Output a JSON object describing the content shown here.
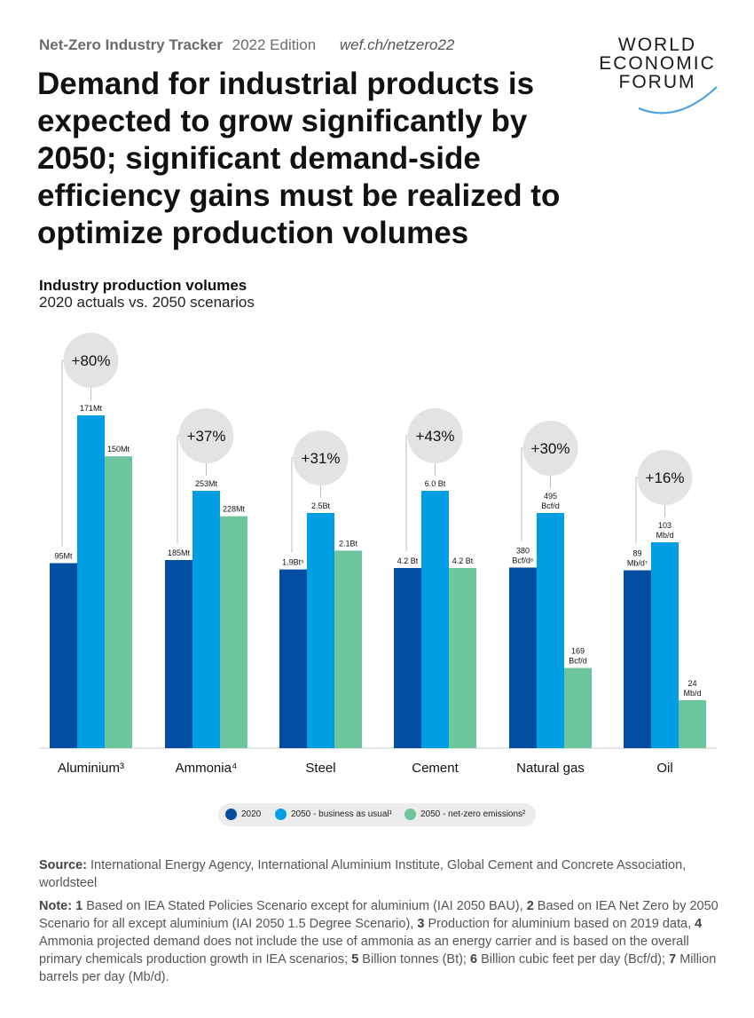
{
  "header": {
    "brand": "Net-Zero Industry Tracker",
    "edition": "2022 Edition",
    "url": "wef.ch/netzero22",
    "logo": [
      "WORLD",
      "ECONOMIC",
      "FORUM"
    ],
    "headline": "Demand for industrial products is expected to grow significantly by 2050; significant demand-side efficiency gains must be realized to optimize production volumes",
    "subtitle_bold": "Industry production volumes",
    "subtitle": "2020 actuals vs. 2050 scenarios"
  },
  "colors": {
    "s2020": "#034ea2",
    "bau": "#009fe3",
    "netzero": "#6cc59c",
    "bubble": "#e3e3e3"
  },
  "chart_data": {
    "type": "bar",
    "title": "Industry production volumes",
    "subtitle": "2020 actuals vs. 2050 scenarios",
    "series": [
      {
        "name": "2020",
        "values_relative": [
          0.556,
          0.731,
          0.76,
          0.7,
          0.768,
          0.864
        ]
      },
      {
        "name": "2050 - business as usual¹",
        "values_relative": [
          1,
          1,
          1,
          1,
          1,
          1
        ]
      },
      {
        "name": "2050 - net-zero emissions²",
        "values_relative": [
          0.877,
          0.901,
          0.84,
          0.7,
          0.341,
          0.233
        ]
      }
    ],
    "categories": [
      {
        "label": "Aluminium³",
        "change": "+80%",
        "labels": [
          "95Mt",
          "171Mt",
          "150Mt"
        ]
      },
      {
        "label": "Ammonia⁴",
        "change": "+37%",
        "labels": [
          "185Mt",
          "253Mt",
          "228Mt"
        ]
      },
      {
        "label": "Steel",
        "change": "+31%",
        "labels": [
          "1.9Bt⁵",
          "2.5Bt",
          "2.1Bt"
        ]
      },
      {
        "label": "Cement",
        "change": "+43%",
        "labels": [
          "4.2 Bt",
          "6.0 Bt",
          "4.2 Bt"
        ]
      },
      {
        "label": "Natural gas",
        "change": "+30%",
        "labels": [
          "380\nBcf/d⁶",
          "495\nBcf/d",
          "169\nBcf/d"
        ]
      },
      {
        "label": "Oil",
        "change": "+16%",
        "labels": [
          "89\nMb/d⁷",
          "103\nMb/d",
          "24\nMb/d"
        ]
      }
    ]
  },
  "legend": [
    "2020",
    "2050 - business as usual¹",
    "2050 - net-zero emissions²"
  ],
  "source": {
    "label": "Source:",
    "text": "International Energy Agency, International Aluminium Institute, Global Cement and Concrete Association, worldsteel"
  },
  "note": {
    "label": "Note:",
    "parts": [
      {
        "n": "1",
        "t": "Based on IEA Stated Policies Scenario except for aluminium (IAI 2050 BAU),"
      },
      {
        "n": "2",
        "t": "Based on IEA Net Zero by 2050 Scenario for all except aluminium (IAI 2050 1.5 Degree Scenario),"
      },
      {
        "n": "3",
        "t": "Production for aluminium based on 2019 data,"
      },
      {
        "n": "4",
        "t": "Ammonia projected demand does not include the use of ammonia as an energy carrier and is based on the overall primary chemicals production growth in IEA scenarios;"
      },
      {
        "n": "5",
        "t": "Billion tonnes (Bt);"
      },
      {
        "n": "6",
        "t": "Billion cubic feet per day (Bcf/d);"
      },
      {
        "n": "7",
        "t": "Million barrels per day (Mb/d)."
      }
    ]
  }
}
